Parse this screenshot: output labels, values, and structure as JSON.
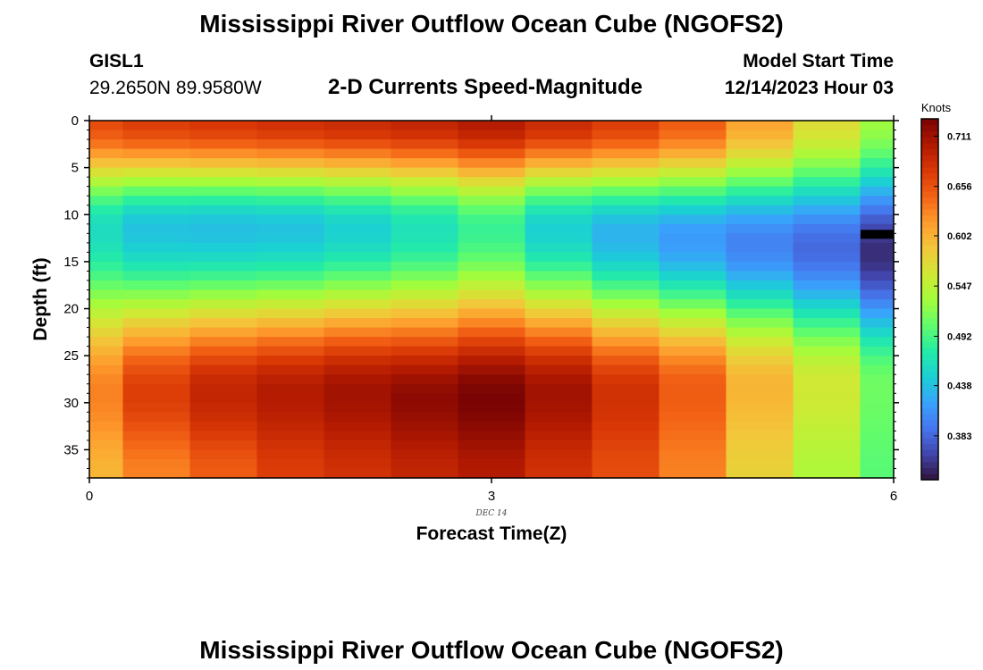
{
  "header": {
    "main_title": "Mississippi River Outflow Ocean Cube (NGOFS2)",
    "station_id": "GISL1",
    "station_coords": "29.2650N  89.9580W",
    "subtitle": "2-D Currents Speed-Magnitude",
    "model_start_label": "Model Start Time",
    "model_start_value": "12/14/2023 Hour 03"
  },
  "footer": {
    "main_title": "Mississippi River Outflow Ocean Cube (NGOFS2)"
  },
  "colors": {
    "colormap": [
      "#30123b",
      "#4145ab",
      "#4675ed",
      "#39a2fc",
      "#1bcfd4",
      "#24eca6",
      "#61fc6c",
      "#a4fc3b",
      "#d1e834",
      "#f3c63a",
      "#fe9b2d",
      "#f36315",
      "#d93806",
      "#b11901",
      "#7a0403"
    ]
  },
  "chart_data": {
    "type": "heatmap",
    "xlabel": "Forecast Time(Z)",
    "ylabel": "Depth (ft)",
    "date_label": "DEC 14",
    "xlim": [
      0,
      6
    ],
    "ylim": [
      38,
      0
    ],
    "x_ticks": [
      0,
      3,
      6
    ],
    "y_ticks": [
      0,
      5,
      10,
      15,
      20,
      25,
      30,
      35
    ],
    "x_tick_labels": [
      "0",
      "3",
      "6"
    ],
    "y_tick_labels": [
      "0",
      "5",
      "10",
      "15",
      "20",
      "25",
      "30",
      "35"
    ],
    "x_columns": [
      0,
      0.5,
      1,
      1.5,
      2,
      2.5,
      3,
      3.5,
      4,
      4.5,
      5,
      5.5,
      6
    ],
    "depth_layers": [
      0.5,
      1.5,
      2.5,
      3.5,
      4.5,
      5.5,
      6.5,
      7.5,
      8.5,
      9.5,
      10.5,
      11.5,
      12.5,
      13.5,
      14.5,
      15.5,
      16.5,
      17.5,
      18.5,
      19.5,
      20.5,
      21.5,
      22.5,
      23.5,
      24.5,
      25.5,
      26.5,
      27.5,
      28.5,
      29.5,
      30.5,
      31.5,
      32.5,
      33.5,
      34.5,
      35.5,
      36.5,
      37.5
    ],
    "surface_speed": [
      0.66,
      0.67,
      0.675,
      0.68,
      0.685,
      0.69,
      0.7,
      0.685,
      0.67,
      0.65,
      0.61,
      0.57,
      0.53
    ],
    "min_speed": [
      0.46,
      0.44,
      0.438,
      0.44,
      0.45,
      0.465,
      0.485,
      0.45,
      0.43,
      0.415,
      0.4,
      0.385,
      0.35
    ],
    "min_depth": [
      11.5,
      11.5,
      11.5,
      11.5,
      11.5,
      11.5,
      11.5,
      11.5,
      12,
      12.5,
      13,
      13.5,
      14
    ],
    "max_speed": [
      0.63,
      0.67,
      0.69,
      0.7,
      0.71,
      0.72,
      0.73,
      0.71,
      0.68,
      0.65,
      0.6,
      0.56,
      0.51
    ],
    "max_depth": [
      29,
      29,
      29,
      29,
      29,
      29.5,
      29.5,
      29,
      29,
      28.5,
      28,
      28,
      28
    ],
    "bottom_speed": [
      0.6,
      0.63,
      0.65,
      0.67,
      0.68,
      0.69,
      0.7,
      0.68,
      0.66,
      0.63,
      0.58,
      0.54,
      0.5
    ],
    "missing_marker": {
      "x": 6,
      "depth": 12
    },
    "colorbar": {
      "label": "Knots",
      "range": [
        0.335,
        0.73
      ],
      "ticks": [
        0.383,
        0.438,
        0.492,
        0.547,
        0.602,
        0.656,
        0.711
      ],
      "tick_labels": [
        "0.383",
        "0.438",
        "0.492",
        "0.547",
        "0.602",
        "0.656",
        "0.711"
      ]
    }
  }
}
